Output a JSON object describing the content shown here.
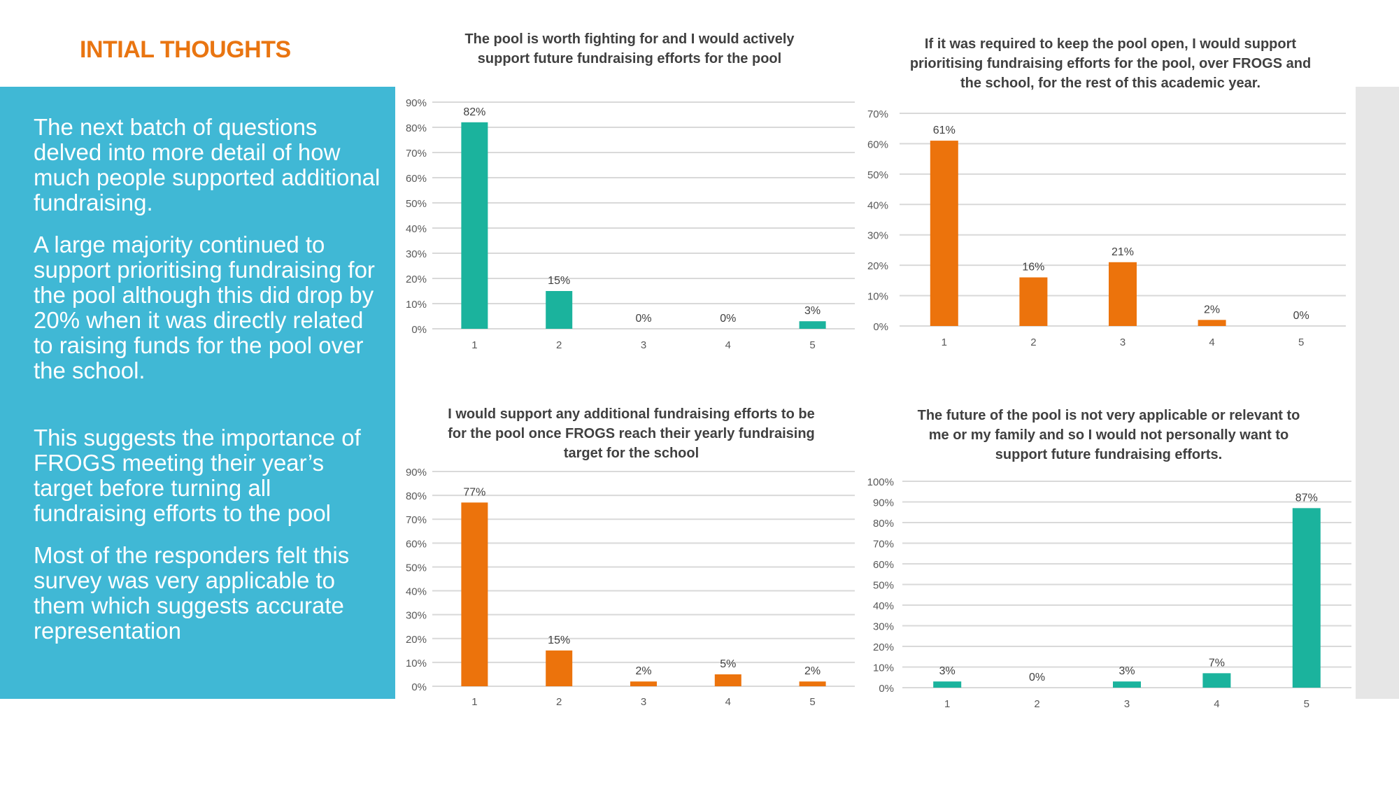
{
  "heading": "INTIAL THOUGHTS",
  "paragraphs": [
    "The next batch of questions delved into more detail of how much people supported additional fundraising.",
    "A large majority continued to support prioritising fundraising for the pool although this did drop by 20% when it was directly related to raising funds for the pool over the school.",
    "This suggests the importance of FROGS meeting their year’s target before turning all fundraising efforts to the pool",
    "Most of the responders felt this survey was very applicable to them which suggests accurate representation"
  ],
  "colors": {
    "teal": "#1bb39d",
    "orange": "#ec730c",
    "panel": "#40b8d5",
    "heading": "#e97511"
  },
  "chart_data": [
    {
      "type": "bar",
      "title": "The pool is worth fighting for and I would actively support future fundraising efforts for the pool",
      "categories": [
        "1",
        "2",
        "3",
        "4",
        "5"
      ],
      "values": [
        82,
        15,
        0,
        0,
        3
      ],
      "value_labels": [
        "82%",
        "15%",
        "0%",
        "0%",
        "3%"
      ],
      "ylim": [
        0,
        90
      ],
      "yticks": [
        "0%",
        "10%",
        "20%",
        "30%",
        "40%",
        "50%",
        "60%",
        "70%",
        "80%",
        "90%"
      ],
      "color": "#1bb39d",
      "grid": true
    },
    {
      "type": "bar",
      "title": "If it was required to keep the pool open, I would support prioritising fundraising efforts for the pool, over FROGS and the school, for the rest of this academic year.",
      "categories": [
        "1",
        "2",
        "3",
        "4",
        "5"
      ],
      "values": [
        61,
        16,
        21,
        2,
        0
      ],
      "value_labels": [
        "61%",
        "16%",
        "21%",
        "2%",
        "0%"
      ],
      "ylim": [
        0,
        70
      ],
      "yticks": [
        "0%",
        "10%",
        "20%",
        "30%",
        "40%",
        "50%",
        "60%",
        "70%"
      ],
      "color": "#ec730c",
      "grid": true
    },
    {
      "type": "bar",
      "title": "I would support any additional fundraising efforts to be for the pool once FROGS reach their yearly fundraising target for the school",
      "categories": [
        "1",
        "2",
        "3",
        "4",
        "5"
      ],
      "values": [
        77,
        15,
        2,
        5,
        2
      ],
      "value_labels": [
        "77%",
        "15%",
        "2%",
        "5%",
        "2%"
      ],
      "ylim": [
        0,
        90
      ],
      "yticks": [
        "0%",
        "10%",
        "20%",
        "30%",
        "40%",
        "50%",
        "60%",
        "70%",
        "80%",
        "90%"
      ],
      "color": "#ec730c",
      "grid": true
    },
    {
      "type": "bar",
      "title": "The future of the pool is not very applicable or relevant to me or my family and so I would not personally want to support future fundraising efforts.",
      "categories": [
        "1",
        "2",
        "3",
        "4",
        "5"
      ],
      "values": [
        3,
        0,
        3,
        7,
        87
      ],
      "value_labels": [
        "3%",
        "0%",
        "3%",
        "7%",
        "87%"
      ],
      "ylim": [
        0,
        100
      ],
      "yticks": [
        "0%",
        "10%",
        "20%",
        "30%",
        "40%",
        "50%",
        "60%",
        "70%",
        "80%",
        "90%",
        "100%"
      ],
      "color": "#1bb39d",
      "grid": true
    }
  ]
}
